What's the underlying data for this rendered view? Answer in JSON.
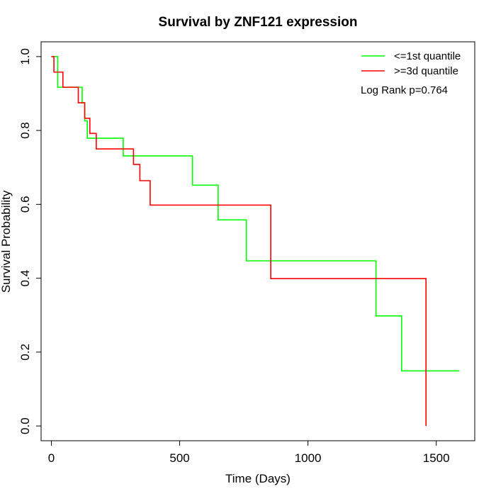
{
  "chart_data": {
    "type": "line",
    "step": true,
    "title": "Survival by ZNF121 expression",
    "xlabel": "Time (Days)",
    "ylabel": "Survival Probability",
    "xlim": [
      -40,
      1650
    ],
    "ylim": [
      -0.04,
      1.04
    ],
    "x_ticks": [
      0,
      500,
      1000,
      1500
    ],
    "y_ticks": [
      0.0,
      0.2,
      0.4,
      0.6,
      0.8,
      1.0
    ],
    "x_tick_labels": [
      "0",
      "500",
      "1000",
      "1500"
    ],
    "y_tick_labels": [
      "0.0",
      "0.2",
      "0.4",
      "0.6",
      "0.8",
      "1.0"
    ],
    "grid": false,
    "legend_position": "top-right",
    "annotation": "Log Rank p=0.764",
    "series": [
      {
        "name": "<=1st quantile",
        "color": "#00ff00",
        "x": [
          0,
          25,
          100,
          120,
          130,
          140,
          280,
          550,
          650,
          760,
          1265,
          1365,
          1590
        ],
        "y": [
          1.0,
          0.917,
          0.917,
          0.875,
          0.826,
          0.779,
          0.731,
          0.652,
          0.558,
          0.447,
          0.298,
          0.149,
          0.149
        ]
      },
      {
        "name": ">=3d quantile",
        "color": "#ff0000",
        "x": [
          0,
          10,
          45,
          105,
          130,
          150,
          175,
          320,
          345,
          385,
          855,
          1460,
          1460
        ],
        "y": [
          1.0,
          0.958,
          0.917,
          0.875,
          0.833,
          0.792,
          0.75,
          0.708,
          0.664,
          0.598,
          0.399,
          0.399,
          0.0
        ]
      }
    ]
  }
}
